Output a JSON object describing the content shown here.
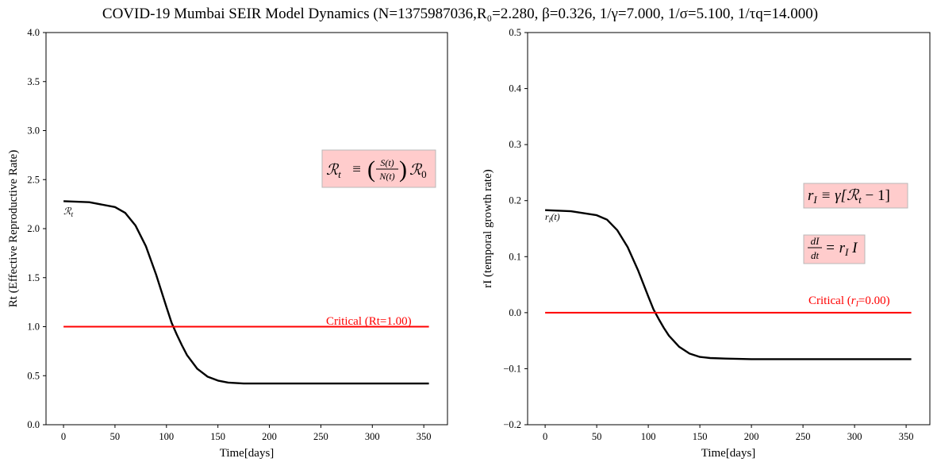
{
  "figure": {
    "title": "COVID-19 Mumbai SEIR Model Dynamics (N=1375987036,R₀=2.280, β=0.326, 1/γ=7.000, 1/σ=5.100, 1/τq=14.000)"
  },
  "chart_data": [
    {
      "type": "line",
      "xlabel": "Time[days]",
      "ylabel": "Rt (Effective Reproductive Rate)",
      "xlim": [
        -17,
        373
      ],
      "ylim": [
        0.0,
        4.0
      ],
      "xticks": [
        0,
        50,
        100,
        150,
        200,
        250,
        300,
        350
      ],
      "xtick_labels": [
        "0",
        "50",
        "100",
        "150",
        "200",
        "250",
        "300",
        "350"
      ],
      "yticks": [
        0.0,
        0.5,
        1.0,
        1.5,
        2.0,
        2.5,
        3.0,
        3.5,
        4.0
      ],
      "ytick_labels": [
        "0.0",
        "0.5",
        "1.0",
        "1.5",
        "2.0",
        "2.5",
        "3.0",
        "3.5",
        "4.0"
      ],
      "grid": false,
      "series": [
        {
          "name": "ℛt",
          "color": "#000000",
          "x": [
            0,
            25,
            50,
            60,
            70,
            80,
            90,
            100,
            105,
            110,
            115,
            120,
            130,
            140,
            150,
            160,
            175,
            200,
            250,
            300,
            355
          ],
          "y": [
            2.28,
            2.27,
            2.22,
            2.16,
            2.03,
            1.82,
            1.53,
            1.2,
            1.04,
            0.92,
            0.81,
            0.71,
            0.57,
            0.49,
            0.45,
            0.43,
            0.42,
            0.42,
            0.42,
            0.42,
            0.42
          ]
        },
        {
          "name": "Critical (Rt=1.00)",
          "color": "#ff0000",
          "x": [
            0,
            355
          ],
          "y": [
            1.0,
            1.0
          ]
        }
      ],
      "annotations": [
        {
          "text": "ℛt ≡ (S(t)/N(t)) ℛ0",
          "box_color": "#ffcccc"
        }
      ]
    },
    {
      "type": "line",
      "xlabel": "Time[days]",
      "ylabel": "rI (temporal growth rate)",
      "xlim": [
        -17,
        373
      ],
      "ylim": [
        -0.2,
        0.5
      ],
      "xticks": [
        0,
        50,
        100,
        150,
        200,
        250,
        300,
        350
      ],
      "xtick_labels": [
        "0",
        "50",
        "100",
        "150",
        "200",
        "250",
        "300",
        "350"
      ],
      "yticks": [
        -0.2,
        -0.1,
        0.0,
        0.1,
        0.2,
        0.3,
        0.4,
        0.5
      ],
      "ytick_labels": [
        "−0.2",
        "−0.1",
        "0.0",
        "0.1",
        "0.2",
        "0.3",
        "0.4",
        "0.5"
      ],
      "grid": false,
      "series": [
        {
          "name": "rI(t)",
          "color": "#000000",
          "x": [
            0,
            25,
            50,
            60,
            70,
            80,
            90,
            100,
            105,
            110,
            115,
            120,
            130,
            140,
            150,
            160,
            175,
            200,
            250,
            300,
            355
          ],
          "y": [
            0.183,
            0.181,
            0.174,
            0.166,
            0.147,
            0.117,
            0.076,
            0.029,
            0.006,
            -0.011,
            -0.027,
            -0.041,
            -0.061,
            -0.073,
            -0.079,
            -0.081,
            -0.082,
            -0.083,
            -0.083,
            -0.083,
            -0.083
          ]
        },
        {
          "name": "Critical (rI=0.00)",
          "color": "#ff0000",
          "x": [
            0,
            355
          ],
          "y": [
            0.0,
            0.0
          ]
        }
      ],
      "annotations": [
        {
          "text": "rI ≡ γ[ℛt − 1]",
          "box_color": "#ffcccc"
        },
        {
          "text": "dI/dt = rI I",
          "box_color": "#ffcccc"
        }
      ]
    }
  ],
  "plot1_text": {
    "series_label": "ℛ",
    "series_label_sub": "t",
    "critical_label": "Critical (Rt=1.00)",
    "formula_lhs": "ℛ",
    "formula_lhs_sub": "t",
    "formula_eq": "≡",
    "formula_num": "S(t)",
    "formula_den": "N(t)",
    "formula_rhs": "ℛ",
    "formula_rhs_sub": "0"
  },
  "plot2_text": {
    "series_label": "r",
    "series_label_sub": "I",
    "series_label_arg": "(t)",
    "critical_label_pre": "Critical (",
    "critical_label_var": "r",
    "critical_label_sub": "I",
    "critical_label_post": "=0.00)",
    "formula1": "r",
    "formula1_sub": "I",
    "formula1_rest": " ≡ γ[ℛ",
    "formula1_sub2": "t",
    "formula1_end": " − 1]",
    "formula2_num": "dI",
    "formula2_den": "dt",
    "formula2_rest": "= r",
    "formula2_sub": "I",
    "formula2_end": " I"
  }
}
